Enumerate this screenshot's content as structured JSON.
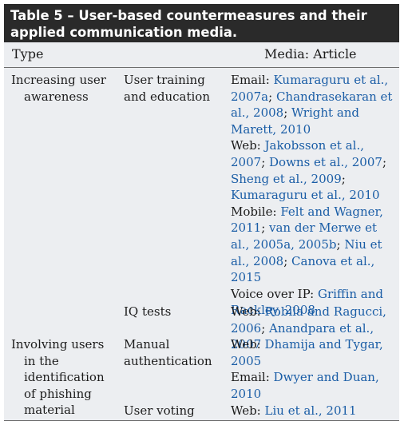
{
  "table": {
    "title": "Table 5 – User-based countermeasures and their applied communication media.",
    "header": {
      "type": "Type",
      "media": "Media: Article"
    },
    "groups": [
      {
        "type_line1": "Increasing user",
        "type_rest": "awareness",
        "rows": [
          {
            "countermeasure_line1": "User training",
            "countermeasure_line2": "and education",
            "entries": [
              {
                "medium": "Email:",
                "refs": [
                  "Kumaraguru et al., 2007a",
                  "Chandrasekaran et al., 2008",
                  "Wright and Marett, 2010"
                ]
              },
              {
                "medium": "Web:",
                "refs": [
                  "Jakobsson et al., 2007",
                  "Downs et al., 2007",
                  "Sheng et al., 2009",
                  "Kumaraguru et al., 2010"
                ]
              },
              {
                "medium": "Mobile:",
                "refs": [
                  "Felt and Wagner, 2011",
                  "van der Merwe et al., 2005a, 2005b",
                  "Niu et al., 2008",
                  "Canova et al., 2015"
                ]
              },
              {
                "medium": "Voice over IP:",
                "refs": [
                  "Griffin and Rackley, 2008"
                ]
              }
            ]
          },
          {
            "countermeasure_line1": "IQ tests",
            "countermeasure_line2": "",
            "entries": [
              {
                "medium": "Web:",
                "refs": [
                  "Robila and Ragucci, 2006",
                  "Anandpara et al., 2007"
                ]
              }
            ]
          }
        ]
      },
      {
        "type_line1": "Involving users",
        "type_rest": "in the identification of phishing material",
        "rows": [
          {
            "countermeasure_line1": "Manual",
            "countermeasure_line2": "authentication",
            "entries": [
              {
                "medium": "Web:",
                "refs": [
                  "Dhamija and Tygar, 2005"
                ]
              },
              {
                "medium": "Email:",
                "refs": [
                  "Dwyer and Duan, 2010"
                ]
              }
            ]
          },
          {
            "countermeasure_line1": "User voting",
            "countermeasure_line2": "",
            "entries": [
              {
                "medium": "Web:",
                "refs": [
                  "Liu et al., 2011"
                ]
              }
            ]
          }
        ]
      }
    ]
  },
  "colors": {
    "title_bg": "#2a2a2a",
    "body_bg": "#eceef1",
    "link": "#1a5da6"
  }
}
